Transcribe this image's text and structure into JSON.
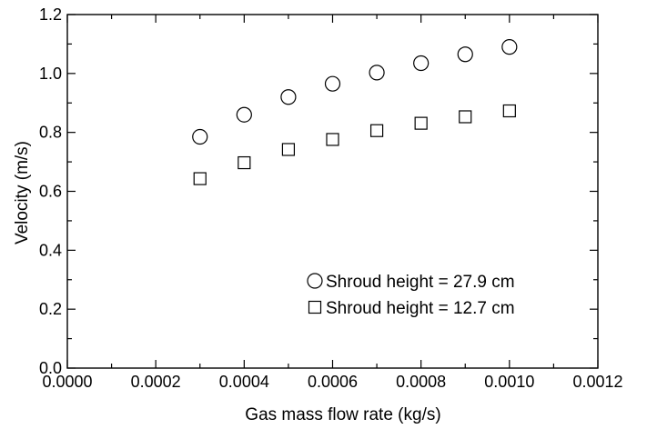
{
  "chart_data": {
    "type": "scatter",
    "title": "",
    "xlabel": "Gas mass flow rate (kg/s)",
    "ylabel": "Velocity (m/s)",
    "xlim": [
      0.0,
      0.0012
    ],
    "ylim": [
      0.0,
      1.2
    ],
    "x_ticks": [
      "0.0000",
      "0.0002",
      "0.0004",
      "0.0006",
      "0.0008",
      "0.0010",
      "0.0012"
    ],
    "y_ticks": [
      "0.0",
      "0.2",
      "0.4",
      "0.6",
      "0.8",
      "1.0",
      "1.2"
    ],
    "grid": false,
    "legend_position": "bottom-right",
    "series": [
      {
        "name": "Shroud height = 27.9 cm",
        "marker": "circle",
        "x": [
          0.0003,
          0.0004,
          0.0005,
          0.0006,
          0.0007,
          0.0008,
          0.0009,
          0.001
        ],
        "y": [
          0.785,
          0.86,
          0.92,
          0.965,
          1.003,
          1.035,
          1.065,
          1.09
        ]
      },
      {
        "name": "Shroud height = 12.7 cm",
        "marker": "square",
        "x": [
          0.0003,
          0.0004,
          0.0005,
          0.0006,
          0.0007,
          0.0008,
          0.0009,
          0.001
        ],
        "y": [
          0.643,
          0.697,
          0.742,
          0.776,
          0.806,
          0.831,
          0.853,
          0.873
        ]
      }
    ]
  }
}
